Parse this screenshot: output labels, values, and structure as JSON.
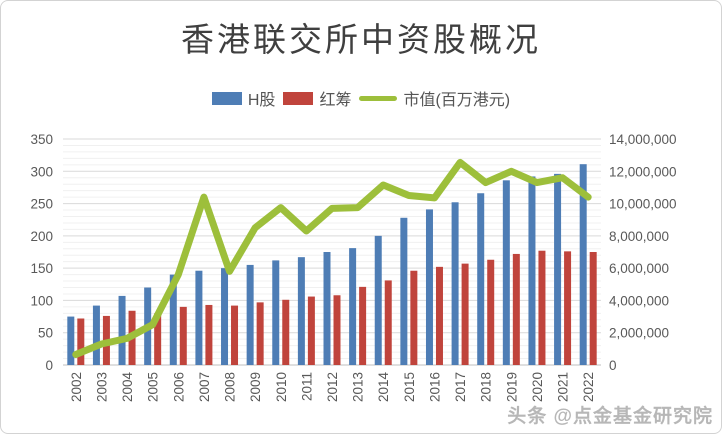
{
  "title": "香港联交所中资股概况",
  "watermark": "头条 @点金基金研究院",
  "colors": {
    "h_share": "#4e7db5",
    "red_chip": "#c0443c",
    "market_cap": "#9dbf3b",
    "grid_minor": "#f0f0f0",
    "grid_major": "#d9d9d9",
    "axis_line": "#bfbfbf",
    "axis_text": "#595959",
    "title_text": "#3f3f3f"
  },
  "legend": [
    {
      "label": "H股",
      "type": "bar",
      "color_key": "h_share"
    },
    {
      "label": "红筹",
      "type": "bar",
      "color_key": "red_chip"
    },
    {
      "label": "市值(百万港元)",
      "type": "line",
      "color_key": "market_cap"
    }
  ],
  "chart_data": {
    "type": "bar+line combo",
    "title": "香港联交所中资股概况",
    "categories": [
      "2002",
      "2003",
      "2004",
      "2005",
      "2006",
      "2007",
      "2008",
      "2009",
      "2010",
      "2011",
      "2012",
      "2013",
      "2014",
      "2015",
      "2016",
      "2017",
      "2018",
      "2019",
      "2020",
      "2021",
      "2022"
    ],
    "series": [
      {
        "name": "H股",
        "type": "bar",
        "axis": "left",
        "values": [
          75,
          92,
          107,
          120,
          140,
          146,
          150,
          155,
          162,
          167,
          175,
          181,
          200,
          228,
          241,
          252,
          266,
          286,
          292,
          296,
          311
        ]
      },
      {
        "name": "红筹",
        "type": "bar",
        "axis": "left",
        "values": [
          72,
          76,
          84,
          80,
          90,
          93,
          92,
          97,
          101,
          106,
          108,
          121,
          131,
          146,
          152,
          157,
          163,
          172,
          177,
          176,
          175
        ]
      },
      {
        "name": "市值(百万港元)",
        "type": "line",
        "axis": "right",
        "values": [
          650000,
          1300000,
          1650000,
          2500000,
          5600000,
          10400000,
          5800000,
          8500000,
          9750000,
          8300000,
          9700000,
          9750000,
          11150000,
          10500000,
          10350000,
          12550000,
          11300000,
          12000000,
          11300000,
          11600000,
          10400000
        ]
      }
    ],
    "left_axis": {
      "min": 0,
      "max": 350,
      "step": 50,
      "ticks": [
        "0",
        "50",
        "100",
        "150",
        "200",
        "250",
        "300",
        "350"
      ]
    },
    "right_axis": {
      "min": 0,
      "max": 14000000,
      "step": 2000000,
      "ticks": [
        "0",
        "2,000,000",
        "4,000,000",
        "6,000,000",
        "8,000,000",
        "10,000,000",
        "12,000,000",
        "14,000,000"
      ]
    },
    "grid": "horizontal, minor every 10 (left axis), major every 50",
    "legend_position": "top, below title"
  }
}
